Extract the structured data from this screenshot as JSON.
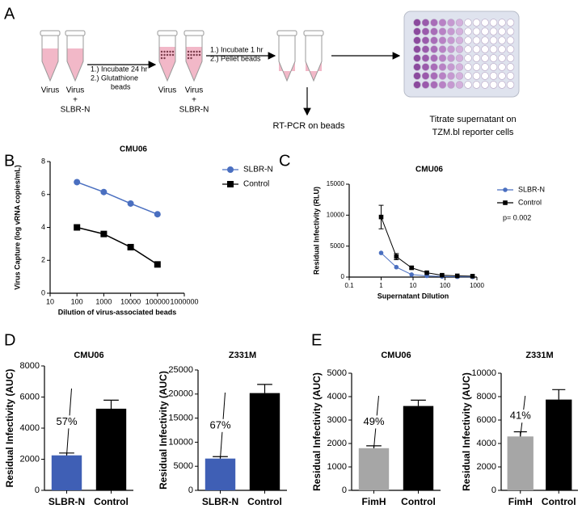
{
  "panels": [
    "A",
    "B",
    "C",
    "D",
    "E"
  ],
  "diagram": {
    "tube_labels": [
      [
        "Virus"
      ],
      [
        "Virus",
        "+",
        "SLBR-N"
      ],
      [
        "Virus"
      ],
      [
        "Virus",
        "+",
        "SLBR-N"
      ]
    ],
    "step1": [
      "1.) Incubate 24 hr",
      "2.) Glutathione",
      "beads"
    ],
    "step2": [
      "1.) Incubate 1 hr",
      "2.) Pellet beads"
    ],
    "readout1": "RT-PCR on beads",
    "readout2": [
      "Titrate supernatant on",
      "TZM.bl reporter cells"
    ]
  },
  "chart_data": [
    {
      "type": "line",
      "title": "CMU06",
      "ylabel": "Virus Capture (log vRNA copies/mL)",
      "xlabel": "Dilution of virus-associated beads",
      "xscale": "log",
      "x": [
        100,
        1000,
        10000,
        100000
      ],
      "xlim": [
        10,
        1000000
      ],
      "xticks": [
        10,
        100,
        1000,
        10000,
        100000,
        1000000
      ],
      "ylim": [
        0,
        8
      ],
      "yticks": [
        0,
        2,
        4,
        6,
        8
      ],
      "legend": "right",
      "series": [
        {
          "name": "SLBR-N",
          "color": "#4a6fc0",
          "marker": "circle",
          "values": [
            6.75,
            6.15,
            5.45,
            4.8
          ]
        },
        {
          "name": "Control",
          "color": "#000000",
          "marker": "square",
          "values": [
            4.0,
            3.6,
            2.8,
            1.75
          ]
        }
      ]
    },
    {
      "type": "line",
      "title": "CMU06",
      "ylabel": "Residual Infectivity (RLU)",
      "xlabel": "Supernatant Dilution",
      "xscale": "log",
      "x": [
        1,
        3,
        9,
        27,
        81,
        243,
        729
      ],
      "xlim": [
        0.1,
        1000
      ],
      "xticks": [
        0.1,
        1,
        10,
        100,
        1000
      ],
      "ylim": [
        0,
        15000
      ],
      "yticks": [
        0,
        5000,
        10000,
        15000
      ],
      "legend": "right",
      "annotation": "p= 0.002",
      "series": [
        {
          "name": "SLBR-N",
          "color": "#4a6fc0",
          "marker": "circle",
          "values": [
            3900,
            1600,
            400,
            200,
            100,
            50,
            30
          ]
        },
        {
          "name": "Control",
          "color": "#000000",
          "marker": "square",
          "values": [
            9700,
            3300,
            1500,
            700,
            300,
            200,
            150
          ],
          "errors": [
            1900,
            500,
            200,
            null,
            null,
            null,
            null
          ]
        }
      ]
    },
    {
      "type": "bar",
      "title": "CMU06",
      "ylabel": "Residual Infectivity (AUC)",
      "categories": [
        "SLBR-N",
        "Control"
      ],
      "values": [
        2250,
        5250
      ],
      "errors": [
        150,
        550
      ],
      "colors": [
        "#3f5fb5",
        "#000000"
      ],
      "annotation": "57%",
      "ylim": [
        0,
        8000
      ],
      "yticks": [
        0,
        2000,
        4000,
        6000,
        8000
      ]
    },
    {
      "type": "bar",
      "title": "Z331M",
      "ylabel": "Residual Infectivity (AUC)",
      "categories": [
        "SLBR-N",
        "Control"
      ],
      "values": [
        6600,
        20200
      ],
      "errors": [
        400,
        1800
      ],
      "colors": [
        "#3f5fb5",
        "#000000"
      ],
      "annotation": "67%",
      "ylim": [
        0,
        25000
      ],
      "yticks": [
        0,
        5000,
        10000,
        15000,
        20000,
        25000
      ]
    },
    {
      "type": "bar",
      "title": "CMU06",
      "ylabel": "Residual Infectivity (AUC)",
      "categories": [
        "FimH",
        "Control"
      ],
      "values": [
        1800,
        3600
      ],
      "errors": [
        100,
        250
      ],
      "colors": [
        "#a6a6a6",
        "#000000"
      ],
      "annotation": "49%",
      "ylim": [
        0,
        5000
      ],
      "yticks": [
        0,
        1000,
        2000,
        3000,
        4000,
        5000
      ]
    },
    {
      "type": "bar",
      "title": "Z331M",
      "ylabel": "Residual Infectivity (AUC)",
      "categories": [
        "FimH",
        "Control"
      ],
      "values": [
        4600,
        7750
      ],
      "errors": [
        400,
        850
      ],
      "colors": [
        "#a6a6a6",
        "#000000"
      ],
      "annotation": "41%",
      "ylim": [
        0,
        10000
      ],
      "yticks": [
        0,
        2000,
        4000,
        6000,
        8000,
        10000
      ]
    }
  ]
}
